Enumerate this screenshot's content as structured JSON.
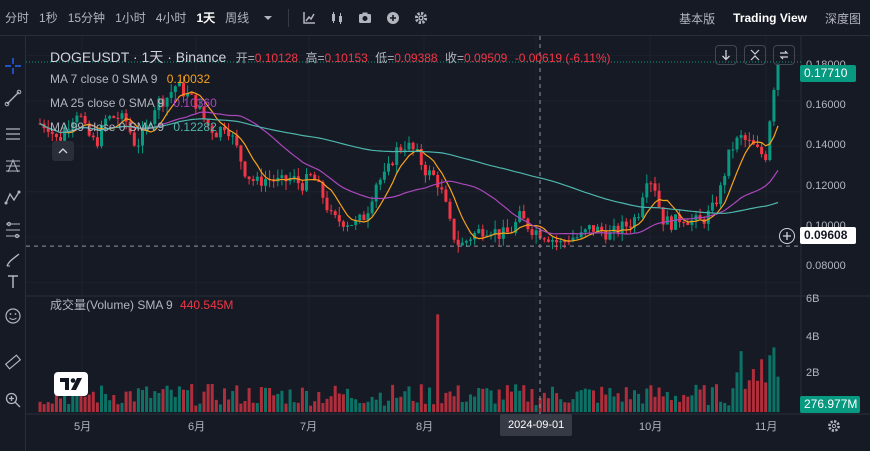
{
  "toolbar": {
    "timeframes": [
      "分时",
      "1秒",
      "15分钟",
      "1小时",
      "4小时",
      "1天",
      "周线"
    ],
    "active_timeframe": "1天",
    "icons": [
      "bar-style-icon",
      "candle-style-icon",
      "camera-icon",
      "plus-circle-icon",
      "gear-icon"
    ],
    "views": [
      "基本版",
      "Trading View",
      "深度图"
    ],
    "active_view": "Trading View"
  },
  "legend": {
    "symbol": "DOGEUSDT · 1天 · Binance",
    "open_label": "开=",
    "open": "0.10128",
    "high_label": "高=",
    "high": "0.10153",
    "low_label": "低=",
    "low": "0.09388",
    "close_label": "收=",
    "close": "0.09509",
    "change": "-0.00619 (-6.11%)",
    "ma7_label": "MA 7 close 0 SMA 9",
    "ma7_value": "0.10032",
    "ma25_label": "MA 25 close 0 SMA 9",
    "ma25_value": "0.10360",
    "ma99_label": "MA 99 close 0 SMA 9",
    "ma99_value": "0.12282",
    "volume_label": "成交量(Volume) SMA 9",
    "volume_value": "440.545M"
  },
  "price_axis": {
    "ticks": [
      "0.18000",
      "0.16000",
      "0.14000",
      "0.12000",
      "0.10000",
      "0.08000"
    ],
    "last_price": "0.17710",
    "crosshair_price": "0.09608"
  },
  "volume_axis": {
    "ticks": [
      "6B",
      "4B",
      "2B"
    ],
    "last_volume": "276.977M"
  },
  "time_axis": {
    "ticks": [
      "5月",
      "6月",
      "7月",
      "8月",
      "10月",
      "11月"
    ],
    "crosshair_date": "2024-09-01"
  },
  "colors": {
    "up": "#089981",
    "down": "#f23645",
    "ma7": "#f7a21b",
    "ma25": "#ab47bc",
    "ma99": "#4db6ac",
    "background": "#161a25"
  },
  "chart_data": {
    "type": "candlestick",
    "series": [
      {
        "name": "MA 7",
        "value": 0.10032
      },
      {
        "name": "MA 25",
        "value": 0.1036
      },
      {
        "name": "MA 99",
        "value": 0.12282
      }
    ],
    "ylim": [
      0.075,
      0.185
    ],
    "last_close": 0.1771
  }
}
